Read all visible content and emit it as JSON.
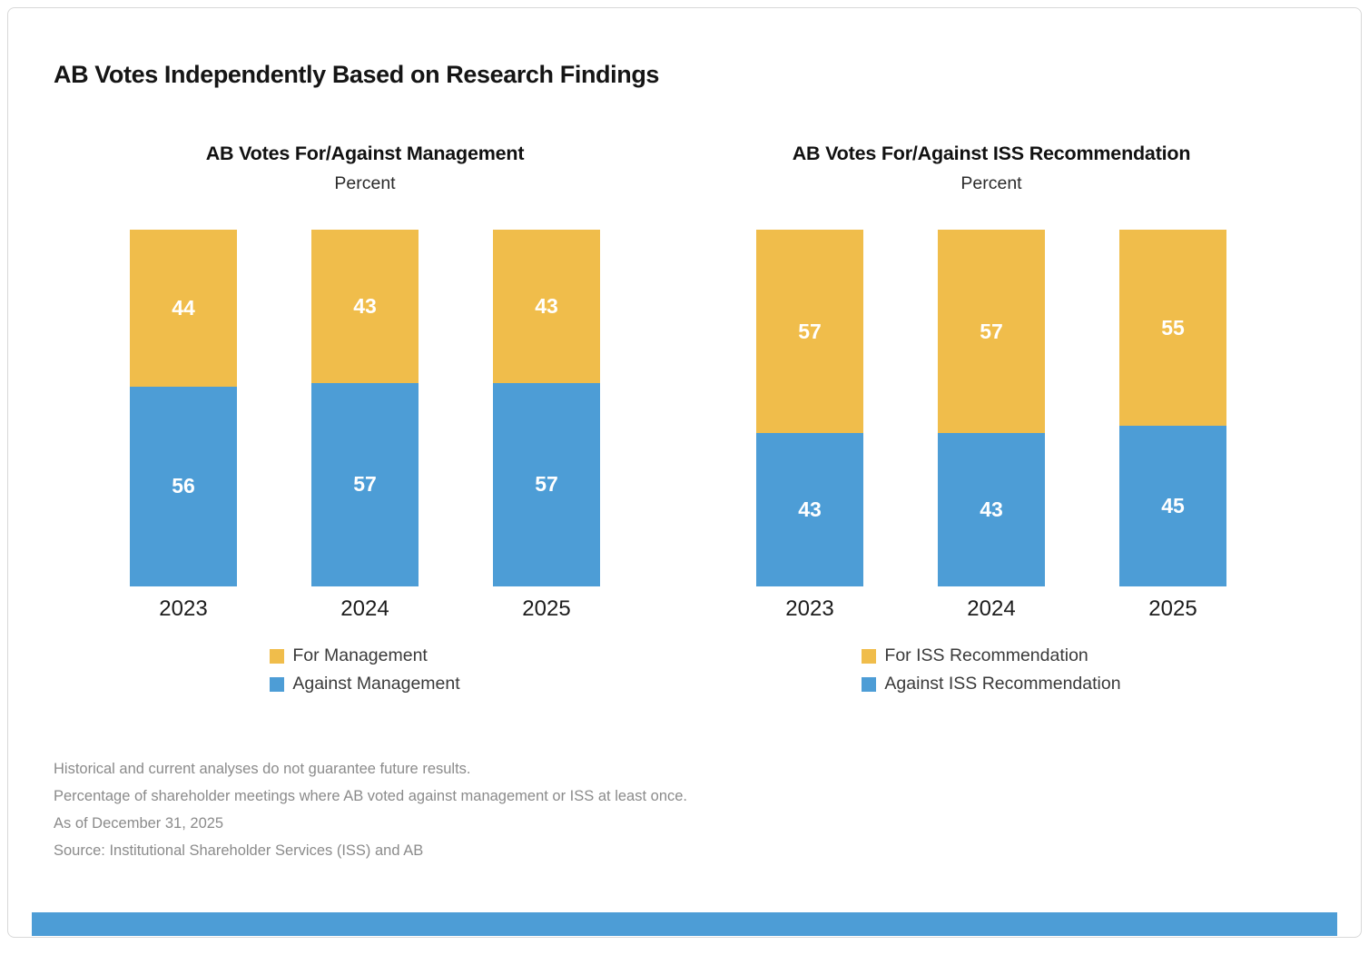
{
  "page": {
    "title": "AB Votes Independently Based on Research Findings"
  },
  "colors": {
    "for_color": "#F0BD4B",
    "against_color": "#4D9DD6",
    "title_text": "#151515",
    "footnote_text": "#8B8B8B",
    "card_border": "#D8D8D8",
    "bar_value_text": "#FFFFFF",
    "footer_bar": "#4D9DD6"
  },
  "chart_data": [
    {
      "type": "bar",
      "stacked": true,
      "title": "AB Votes For/Against Management",
      "subtitle": "Percent",
      "categories": [
        "2023",
        "2024",
        "2025"
      ],
      "series": [
        {
          "name": "For Management",
          "color": "#F0BD4B",
          "values": [
            44,
            43,
            43
          ]
        },
        {
          "name": "Against Management",
          "color": "#4D9DD6",
          "values": [
            56,
            57,
            57
          ]
        }
      ],
      "ylim": [
        0,
        100
      ],
      "grid": false,
      "axes_hidden": true,
      "value_labels": "inside-white",
      "legend_position": "bottom"
    },
    {
      "type": "bar",
      "stacked": true,
      "title": "AB Votes For/Against ISS Recommendation",
      "subtitle": "Percent",
      "categories": [
        "2023",
        "2024",
        "2025"
      ],
      "series": [
        {
          "name": "For ISS Recommendation",
          "color": "#F0BD4B",
          "values": [
            57,
            57,
            55
          ]
        },
        {
          "name": "Against ISS Recommendation",
          "color": "#4D9DD6",
          "values": [
            43,
            43,
            45
          ]
        }
      ],
      "ylim": [
        0,
        100
      ],
      "grid": false,
      "axes_hidden": true,
      "value_labels": "inside-white",
      "legend_position": "bottom"
    }
  ],
  "footnotes": [
    "Historical and current analyses do not guarantee future results.",
    "Percentage of shareholder meetings where AB voted against management or ISS at least once.",
    "As of December 31, 2025",
    "Source: Institutional Shareholder Services (ISS) and AB"
  ]
}
